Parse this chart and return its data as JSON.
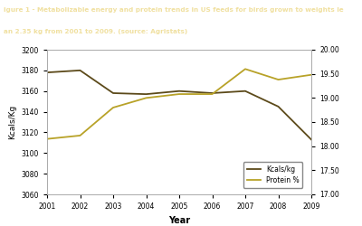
{
  "years": [
    2001,
    2002,
    2003,
    2004,
    2005,
    2006,
    2007,
    2008,
    2009
  ],
  "kcals": [
    3178,
    3180,
    3158,
    3157,
    3160,
    3158,
    3160,
    3145,
    3113
  ],
  "protein": [
    18.15,
    18.22,
    18.8,
    19.0,
    19.08,
    19.08,
    19.6,
    19.38,
    19.48
  ],
  "kcals_color": "#5c4a1a",
  "protein_color": "#b8a228",
  "title_line1": "igure 1 - Metabolizable energy and protein trends in US feeds for birds grown to weights le",
  "title_line2": "an 2.35 kg from 2001 to 2009. (source: Agristats)",
  "title_bg": "#8B7232",
  "title_text_color": "#f0e0a0",
  "xlabel": "Year",
  "ylabel_left": "Kcals/Kg",
  "ylim_left": [
    3060,
    3200
  ],
  "ylim_right": [
    17.0,
    20.0
  ],
  "yticks_left": [
    3060,
    3080,
    3100,
    3120,
    3140,
    3160,
    3180,
    3200
  ],
  "yticks_right": [
    17.0,
    17.5,
    18.0,
    18.5,
    19.0,
    19.5,
    20.0
  ],
  "legend_kcals": "Kcals/kg",
  "legend_protein": "Protein %",
  "bg_color": "#ffffff"
}
